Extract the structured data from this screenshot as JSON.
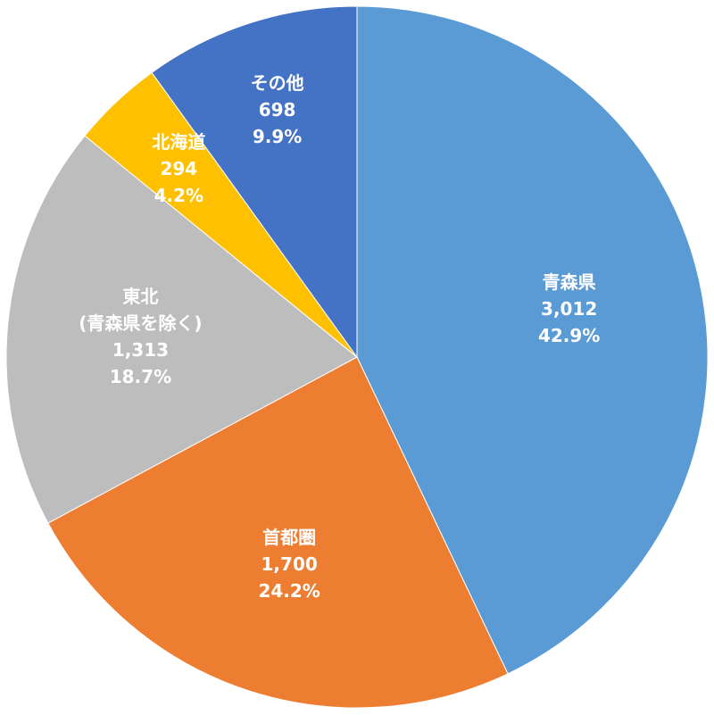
{
  "chart_data": {
    "type": "pie",
    "categories": [
      "青森県",
      "首都圏",
      "東北\n(青森県を除く)",
      "北海道",
      "その他"
    ],
    "values": [
      3012,
      1700,
      1313,
      294,
      698
    ],
    "value_labels": [
      "3,012",
      "1,700",
      "1,313",
      "294",
      "698"
    ],
    "percent_labels": [
      "42.9%",
      "24.2%",
      "18.7%",
      "4.2%",
      "9.9%"
    ],
    "colors": [
      "#5b9bd5",
      "#ed7d31",
      "#bdbdbd",
      "#ffc000",
      "#4472c4"
    ]
  }
}
